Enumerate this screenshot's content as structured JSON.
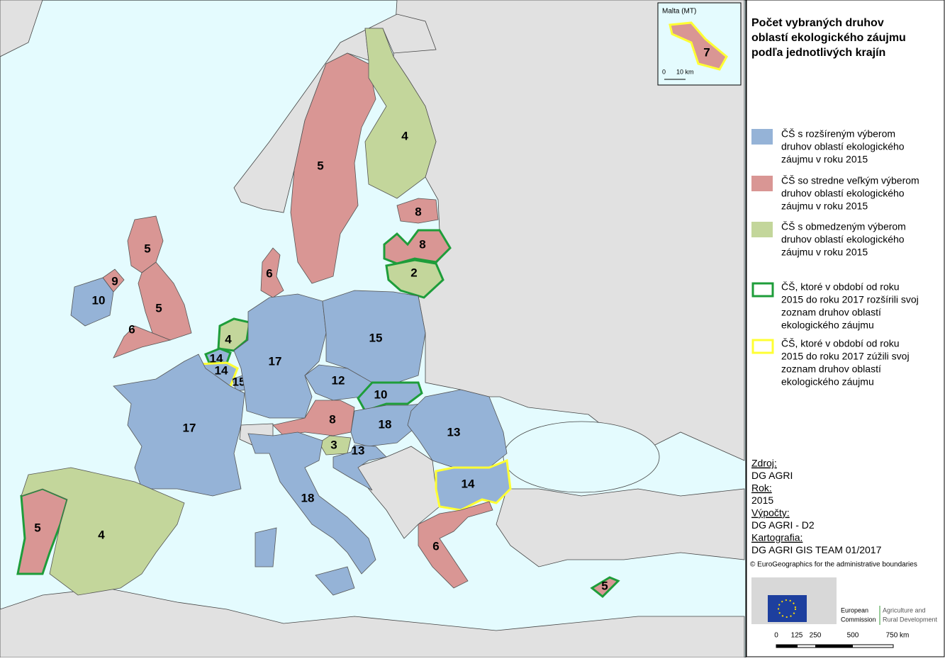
{
  "title": [
    "Počet vybraných druhov",
    "oblastí ekologického záujmu",
    "podľa jednotlivých krajín"
  ],
  "legend": [
    {
      "fill": "#95b3d7",
      "lines": [
        "ČŠ s rozšíreným výberom",
        "druhov oblastí ekologického",
        "záujmu v roku 2015"
      ]
    },
    {
      "fill": "#d99694",
      "lines": [
        "ČŠ so stredne veľkým výberom",
        "druhov oblastí ekologického",
        "záujmu v roku 2015"
      ]
    },
    {
      "fill": "#c3d69b",
      "lines": [
        "ČŠ s obmedzeným výberom",
        "druhov oblastí ekologického",
        "záujmu v roku 2015"
      ]
    },
    {
      "outline": "#1e9d3a",
      "lines": [
        "ČŠ, ktoré v období od roku",
        "2015 do roku 2017 rozšírili svoj",
        "zoznam druhov oblastí",
        "ekologického záujmu"
      ]
    },
    {
      "outline": "#ffff33",
      "lines": [
        "ČŠ, ktoré v období od roku",
        "2015 do roku 2017 zúžili svoj",
        "zoznam druhov oblastí",
        "ekologického záujmu"
      ]
    }
  ],
  "regions": [
    {
      "value": 5,
      "fill": "#d99694"
    },
    {
      "value": 4,
      "fill": "#c3d69b"
    },
    {
      "value": 8,
      "fill": "#d99694"
    },
    {
      "value": 8,
      "fill": "#d99694",
      "outline": "#1e9d3a"
    },
    {
      "value": 2,
      "fill": "#c3d69b",
      "outline": "#1e9d3a"
    },
    {
      "value": 6,
      "fill": "#d99694"
    },
    {
      "value": 5,
      "fill": "#d99694"
    },
    {
      "value": 5,
      "fill": "#d99694"
    },
    {
      "value": 6,
      "fill": "#d99694"
    },
    {
      "value": 9,
      "fill": "#d99694"
    },
    {
      "value": 10,
      "fill": "#95b3d7"
    },
    {
      "value": 4,
      "fill": "#c3d69b",
      "outline": "#1e9d3a"
    },
    {
      "value": 14,
      "fill": "#95b3d7",
      "outline": "#1e9d3a"
    },
    {
      "value": 14,
      "fill": "#95b3d7",
      "outline": "#ffff33"
    },
    {
      "value": 15,
      "fill": "#95b3d7"
    },
    {
      "value": 17,
      "fill": "#95b3d7"
    },
    {
      "value": 15,
      "fill": "#95b3d7"
    },
    {
      "value": 12,
      "fill": "#95b3d7"
    },
    {
      "value": 10,
      "fill": "#95b3d7",
      "outline": "#1e9d3a"
    },
    {
      "value": 8,
      "fill": "#d99694"
    },
    {
      "value": 18,
      "fill": "#95b3d7"
    },
    {
      "value": 13,
      "fill": "#95b3d7"
    },
    {
      "value": 17,
      "fill": "#95b3d7"
    },
    {
      "value": 3,
      "fill": "#c3d69b"
    },
    {
      "value": 13,
      "fill": "#95b3d7"
    },
    {
      "value": 18,
      "fill": "#95b3d7"
    },
    {
      "value": 14,
      "fill": "#95b3d7",
      "outline": "#ffff33"
    },
    {
      "value": 6,
      "fill": "#d99694"
    },
    {
      "value": 5,
      "fill": "#d99694",
      "outline": "#1e9d3a"
    },
    {
      "value": 4,
      "fill": "#c3d69b"
    },
    {
      "value": 5,
      "fill": "#d99694",
      "outline": "#1e9d3a"
    },
    {
      "value": 7,
      "fill": "#d99694",
      "outline": "#ffff33"
    }
  ],
  "inset": {
    "title": "Malta (MT)",
    "scale": [
      "0",
      "10 km"
    ]
  },
  "sources": [
    {
      "text": "Zdroj:",
      "heading": true
    },
    {
      "text": "DG AGRI"
    },
    {
      "text": "Rok:",
      "heading": true
    },
    {
      "text": "2015"
    },
    {
      "text": "Výpočty:",
      "heading": true
    },
    {
      "text": "DG AGRI - D2"
    },
    {
      "text": "Kartografia:",
      "heading": true
    },
    {
      "text": "DG AGRI GIS TEAM 01/2017"
    }
  ],
  "copyright": "© EuroGeographics for the administrative boundaries",
  "logo": [
    "European",
    "Commission",
    "Agriculture and",
    "Rural Development"
  ],
  "scale": [
    "0",
    "125",
    "250",
    "500",
    "750 km"
  ]
}
